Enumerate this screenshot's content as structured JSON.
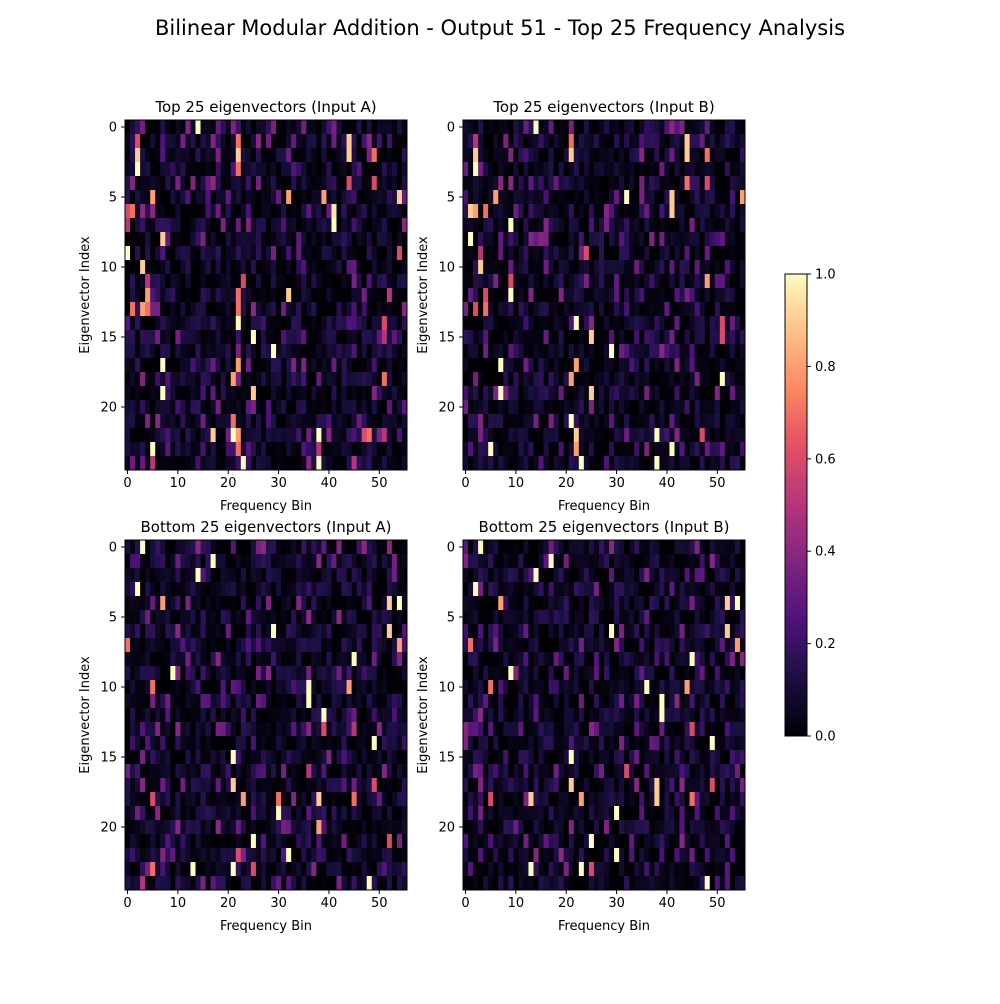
{
  "figure": {
    "suptitle": "Bilinear Modular Addition - Output 51 - Top 25 Frequency Analysis"
  },
  "colorbar": {
    "colormap": "magma",
    "vmin": 0.0,
    "vmax": 1.0,
    "ticks": [
      "0.0",
      "0.2",
      "0.4",
      "0.6",
      "0.8",
      "1.0"
    ]
  },
  "chart_data": [
    {
      "type": "heatmap",
      "title": "Top 25 eigenvectors (Input A)",
      "xlabel": "Frequency Bin",
      "ylabel": "Eigenvector Index",
      "n_rows": 25,
      "n_cols": 56,
      "x_ticks": [
        0,
        10,
        20,
        30,
        40,
        50
      ],
      "y_ticks": [
        0,
        5,
        10,
        15,
        20
      ],
      "value_range": [
        0,
        1
      ],
      "colormap": "magma",
      "hot_cells": [
        [
          0,
          14,
          1.0
        ],
        [
          1,
          2,
          0.6
        ],
        [
          1,
          22,
          0.7
        ],
        [
          1,
          44,
          0.9
        ],
        [
          1,
          48,
          0.4
        ],
        [
          2,
          2,
          0.9
        ],
        [
          2,
          22,
          0.9
        ],
        [
          2,
          44,
          0.9
        ],
        [
          2,
          49,
          0.7
        ],
        [
          3,
          2,
          1.0
        ],
        [
          3,
          22,
          0.7
        ],
        [
          4,
          44,
          0.6
        ],
        [
          4,
          49,
          0.6
        ],
        [
          5,
          5,
          0.8
        ],
        [
          5,
          32,
          0.8
        ],
        [
          5,
          39,
          0.8
        ],
        [
          5,
          54,
          0.9
        ],
        [
          6,
          0,
          0.6
        ],
        [
          6,
          1,
          0.7
        ],
        [
          6,
          3,
          0.4
        ],
        [
          6,
          5,
          0.4
        ],
        [
          6,
          41,
          0.95
        ],
        [
          7,
          0,
          0.5
        ],
        [
          7,
          41,
          1.0
        ],
        [
          8,
          7,
          0.9
        ],
        [
          9,
          0,
          1.0
        ],
        [
          9,
          54,
          0.6
        ],
        [
          10,
          3,
          0.9
        ],
        [
          11,
          4,
          0.5
        ],
        [
          11,
          23,
          0.6
        ],
        [
          12,
          4,
          0.8
        ],
        [
          12,
          22,
          0.7
        ],
        [
          12,
          32,
          0.9
        ],
        [
          12,
          52,
          0.5
        ],
        [
          13,
          1,
          0.7
        ],
        [
          13,
          3,
          0.8
        ],
        [
          13,
          4,
          0.7
        ],
        [
          13,
          22,
          0.7
        ],
        [
          13,
          25,
          0.4
        ],
        [
          14,
          22,
          1.0
        ],
        [
          14,
          51,
          0.6
        ],
        [
          15,
          25,
          1.0
        ],
        [
          15,
          51,
          0.5
        ],
        [
          16,
          29,
          1.0
        ],
        [
          17,
          7,
          1.0
        ],
        [
          17,
          22,
          0.8
        ],
        [
          18,
          21,
          0.8
        ],
        [
          18,
          51,
          0.7
        ],
        [
          19,
          7,
          1.0
        ],
        [
          19,
          25,
          0.9
        ],
        [
          21,
          21,
          0.7
        ],
        [
          22,
          17,
          0.9
        ],
        [
          22,
          21,
          1.0
        ],
        [
          22,
          22,
          0.8
        ],
        [
          22,
          38,
          1.0
        ],
        [
          22,
          47,
          0.6
        ],
        [
          22,
          48,
          0.7
        ],
        [
          22,
          51,
          0.5
        ],
        [
          23,
          5,
          1.0
        ],
        [
          23,
          22,
          0.7
        ],
        [
          23,
          38,
          0.5
        ],
        [
          24,
          5,
          0.5
        ],
        [
          24,
          23,
          1.0
        ],
        [
          24,
          38,
          1.0
        ],
        [
          24,
          45,
          0.5
        ]
      ]
    },
    {
      "type": "heatmap",
      "title": "Top 25 eigenvectors (Input B)",
      "xlabel": "Frequency Bin",
      "ylabel": "Eigenvector Index",
      "n_rows": 25,
      "n_cols": 56,
      "x_ticks": [
        0,
        10,
        20,
        30,
        40,
        50
      ],
      "y_ticks": [
        0,
        5,
        10,
        15,
        20
      ],
      "value_range": [
        0,
        1
      ],
      "colormap": "magma",
      "hot_cells": [
        [
          0,
          14,
          1.0
        ],
        [
          1,
          2,
          0.5
        ],
        [
          1,
          21,
          0.7
        ],
        [
          1,
          44,
          0.9
        ],
        [
          2,
          2,
          0.9
        ],
        [
          2,
          21,
          0.9
        ],
        [
          2,
          44,
          0.9
        ],
        [
          2,
          48,
          0.7
        ],
        [
          3,
          2,
          1.0
        ],
        [
          4,
          44,
          0.7
        ],
        [
          4,
          48,
          0.6
        ],
        [
          5,
          6,
          0.8
        ],
        [
          5,
          32,
          1.0
        ],
        [
          5,
          41,
          0.9
        ],
        [
          5,
          55,
          0.8
        ],
        [
          6,
          1,
          0.9
        ],
        [
          6,
          2,
          0.8
        ],
        [
          6,
          4,
          0.7
        ],
        [
          6,
          41,
          0.9
        ],
        [
          7,
          9,
          1.0
        ],
        [
          8,
          1,
          1.0
        ],
        [
          9,
          3,
          0.5
        ],
        [
          9,
          24,
          0.6
        ],
        [
          10,
          3,
          0.9
        ],
        [
          11,
          9,
          0.6
        ],
        [
          11,
          48,
          0.8
        ],
        [
          12,
          4,
          0.6
        ],
        [
          12,
          9,
          1.0
        ],
        [
          13,
          2,
          0.6
        ],
        [
          13,
          4,
          0.7
        ],
        [
          14,
          22,
          1.0
        ],
        [
          14,
          51,
          0.6
        ],
        [
          15,
          25,
          0.9
        ],
        [
          15,
          51,
          0.6
        ],
        [
          16,
          29,
          1.0
        ],
        [
          17,
          7,
          1.0
        ],
        [
          17,
          22,
          0.8
        ],
        [
          18,
          21,
          0.8
        ],
        [
          18,
          51,
          1.0
        ],
        [
          19,
          7,
          1.0
        ],
        [
          19,
          25,
          0.9
        ],
        [
          21,
          21,
          1.0
        ],
        [
          22,
          22,
          0.9
        ],
        [
          22,
          38,
          1.0
        ],
        [
          22,
          47,
          0.6
        ],
        [
          23,
          5,
          1.0
        ],
        [
          23,
          22,
          0.8
        ],
        [
          23,
          41,
          1.0
        ],
        [
          24,
          23,
          1.0
        ],
        [
          24,
          38,
          1.0
        ]
      ]
    },
    {
      "type": "heatmap",
      "title": "Bottom 25 eigenvectors (Input A)",
      "xlabel": "Frequency Bin",
      "ylabel": "Eigenvector Index",
      "n_rows": 25,
      "n_cols": 56,
      "x_ticks": [
        0,
        10,
        20,
        30,
        40,
        50
      ],
      "y_ticks": [
        0,
        5,
        10,
        15,
        20
      ],
      "value_range": [
        0,
        1
      ],
      "colormap": "magma",
      "hot_cells": [
        [
          0,
          3,
          1.0
        ],
        [
          0,
          14,
          0.4
        ],
        [
          1,
          17,
          1.0
        ],
        [
          2,
          14,
          1.0
        ],
        [
          3,
          2,
          1.0
        ],
        [
          4,
          7,
          0.8
        ],
        [
          4,
          52,
          0.9
        ],
        [
          4,
          54,
          1.0
        ],
        [
          5,
          36,
          0.4
        ],
        [
          6,
          29,
          1.0
        ],
        [
          6,
          52,
          0.9
        ],
        [
          7,
          0,
          0.7
        ],
        [
          7,
          54,
          0.8
        ],
        [
          8,
          45,
          1.0
        ],
        [
          9,
          9,
          1.0
        ],
        [
          10,
          5,
          0.7
        ],
        [
          10,
          36,
          1.0
        ],
        [
          10,
          44,
          0.8
        ],
        [
          11,
          36,
          1.0
        ],
        [
          12,
          39,
          1.0
        ],
        [
          13,
          39,
          0.6
        ],
        [
          13,
          45,
          0.5
        ],
        [
          14,
          49,
          1.0
        ],
        [
          15,
          21,
          1.0
        ],
        [
          16,
          36,
          0.5
        ],
        [
          17,
          21,
          0.9
        ],
        [
          17,
          49,
          0.6
        ],
        [
          18,
          5,
          0.6
        ],
        [
          18,
          23,
          0.8
        ],
        [
          18,
          30,
          0.7
        ],
        [
          18,
          38,
          0.9
        ],
        [
          18,
          45,
          0.7
        ],
        [
          19,
          30,
          1.0
        ],
        [
          20,
          38,
          0.8
        ],
        [
          21,
          25,
          1.0
        ],
        [
          21,
          52,
          0.6
        ],
        [
          22,
          22,
          0.6
        ],
        [
          22,
          32,
          1.0
        ],
        [
          23,
          5,
          0.7
        ],
        [
          23,
          13,
          1.0
        ],
        [
          23,
          21,
          1.0
        ],
        [
          23,
          25,
          0.6
        ],
        [
          24,
          3,
          0.5
        ],
        [
          24,
          48,
          1.0
        ]
      ]
    },
    {
      "type": "heatmap",
      "title": "Bottom 25 eigenvectors (Input B)",
      "xlabel": "Frequency Bin",
      "ylabel": "Eigenvector Index",
      "n_rows": 25,
      "n_cols": 56,
      "x_ticks": [
        0,
        10,
        20,
        30,
        40,
        50
      ],
      "y_ticks": [
        0,
        5,
        10,
        15,
        20
      ],
      "value_range": [
        0,
        1
      ],
      "colormap": "magma",
      "hot_cells": [
        [
          0,
          3,
          1.0
        ],
        [
          1,
          17,
          1.0
        ],
        [
          2,
          14,
          1.0
        ],
        [
          3,
          2,
          1.0
        ],
        [
          4,
          7,
          0.8
        ],
        [
          4,
          52,
          0.9
        ],
        [
          4,
          54,
          1.0
        ],
        [
          6,
          29,
          1.0
        ],
        [
          6,
          52,
          0.9
        ],
        [
          7,
          1,
          0.7
        ],
        [
          7,
          54,
          0.8
        ],
        [
          8,
          45,
          1.0
        ],
        [
          9,
          9,
          1.0
        ],
        [
          10,
          5,
          0.7
        ],
        [
          10,
          36,
          1.0
        ],
        [
          10,
          44,
          0.8
        ],
        [
          11,
          39,
          1.0
        ],
        [
          12,
          39,
          1.0
        ],
        [
          13,
          45,
          0.6
        ],
        [
          14,
          49,
          1.0
        ],
        [
          15,
          21,
          1.0
        ],
        [
          16,
          32,
          0.6
        ],
        [
          17,
          21,
          0.9
        ],
        [
          17,
          38,
          0.9
        ],
        [
          17,
          49,
          0.6
        ],
        [
          18,
          5,
          0.6
        ],
        [
          18,
          13,
          0.9
        ],
        [
          18,
          23,
          0.8
        ],
        [
          18,
          38,
          0.9
        ],
        [
          18,
          45,
          0.7
        ],
        [
          19,
          30,
          1.0
        ],
        [
          21,
          25,
          1.0
        ],
        [
          22,
          30,
          1.0
        ],
        [
          23,
          13,
          1.0
        ],
        [
          23,
          23,
          1.0
        ],
        [
          23,
          25,
          0.6
        ],
        [
          24,
          48,
          1.0
        ]
      ]
    }
  ]
}
